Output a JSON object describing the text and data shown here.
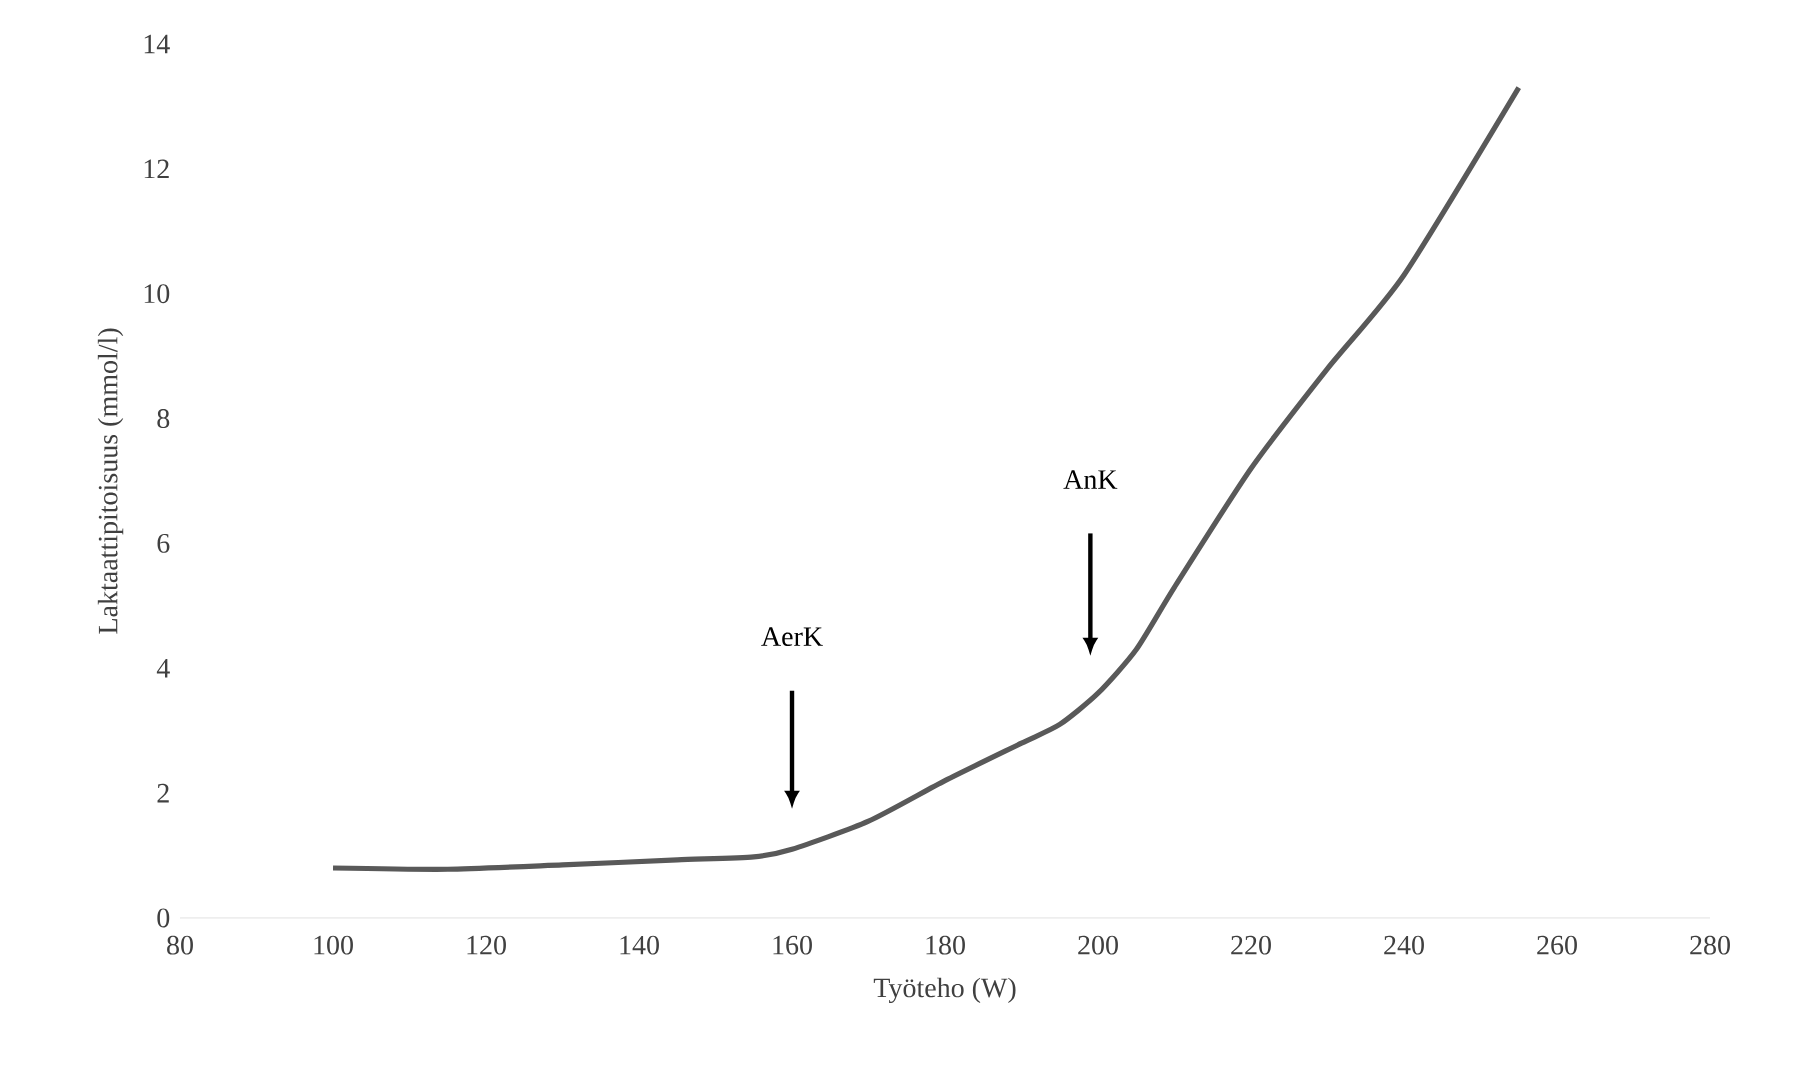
{
  "chart_data": {
    "type": "line",
    "xlabel": "Työteho (W)",
    "ylabel": "Laktaattipitoisuus (mmol/l)",
    "xlim": [
      80,
      280
    ],
    "xticks": [
      80,
      100,
      120,
      140,
      160,
      180,
      200,
      220,
      240,
      260,
      280
    ],
    "ylim": [
      0,
      14
    ],
    "yticks": [
      0,
      2,
      4,
      6,
      8,
      10,
      12,
      14
    ],
    "marker": "none",
    "line_style": "solid",
    "series": [
      {
        "color": "#595959",
        "x": [
          100,
          115,
          130,
          145,
          155,
          160,
          170,
          180,
          190,
          195,
          200,
          205,
          210,
          220,
          230,
          240,
          255
        ],
        "values": [
          0.8,
          0.78,
          0.85,
          0.93,
          0.98,
          1.1,
          1.55,
          2.2,
          2.8,
          3.1,
          3.6,
          4.3,
          5.3,
          7.2,
          8.8,
          10.3,
          13.3
        ]
      }
    ],
    "annotations": [
      "AerK",
      "AnK"
    ]
  }
}
